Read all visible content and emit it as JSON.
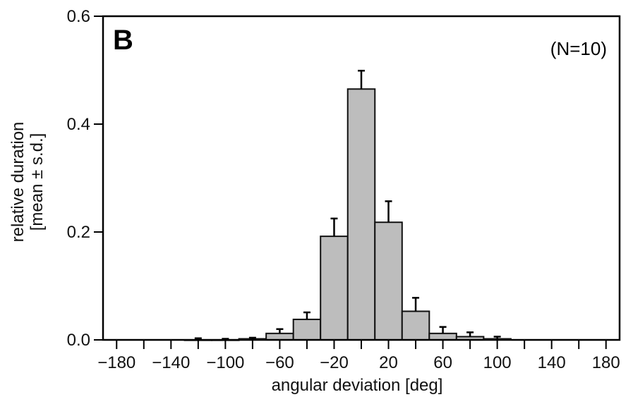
{
  "chart_data": {
    "type": "bar",
    "panel_label": "B",
    "annotation": "(N=10)",
    "xlabel": "angular deviation [deg]",
    "ylabel_line1": "relative duration",
    "ylabel_line2": "[mean ± s.d.]",
    "xlim": [
      -190,
      190
    ],
    "ylim": [
      0,
      0.6
    ],
    "bin_width": 20,
    "x_ticks": [
      -180,
      -160,
      -140,
      -120,
      -100,
      -80,
      -60,
      -40,
      -20,
      0,
      20,
      40,
      60,
      80,
      100,
      120,
      140,
      160,
      180
    ],
    "x_tick_labels": [
      {
        "value": -180,
        "label": "−180"
      },
      {
        "value": -140,
        "label": "−140"
      },
      {
        "value": -100,
        "label": "−100"
      },
      {
        "value": -60,
        "label": "−60"
      },
      {
        "value": -20,
        "label": "−20"
      },
      {
        "value": 20,
        "label": "20"
      },
      {
        "value": 60,
        "label": "60"
      },
      {
        "value": 100,
        "label": "100"
      },
      {
        "value": 140,
        "label": "140"
      },
      {
        "value": 180,
        "label": "180"
      }
    ],
    "y_ticks": [
      0,
      0.2,
      0.4,
      0.6
    ],
    "y_tick_labels": [
      {
        "value": 0,
        "label": "0.0"
      },
      {
        "value": 0.2,
        "label": "0.2"
      },
      {
        "value": 0.4,
        "label": "0.4"
      },
      {
        "value": 0.6,
        "label": "0.6"
      }
    ],
    "bars": [
      {
        "x": -120,
        "value": 0.0,
        "sd": 0.003
      },
      {
        "x": -100,
        "value": 0.0,
        "sd": 0.002
      },
      {
        "x": -80,
        "value": 0.002,
        "sd": 0.002
      },
      {
        "x": -60,
        "value": 0.012,
        "sd": 0.008
      },
      {
        "x": -40,
        "value": 0.038,
        "sd": 0.013
      },
      {
        "x": -20,
        "value": 0.192,
        "sd": 0.033
      },
      {
        "x": 0,
        "value": 0.465,
        "sd": 0.034
      },
      {
        "x": 20,
        "value": 0.218,
        "sd": 0.039
      },
      {
        "x": 40,
        "value": 0.053,
        "sd": 0.025
      },
      {
        "x": 60,
        "value": 0.012,
        "sd": 0.012
      },
      {
        "x": 80,
        "value": 0.006,
        "sd": 0.008
      },
      {
        "x": 100,
        "value": 0.002,
        "sd": 0.004
      }
    ],
    "colors": {
      "bar_fill": "#bdbdbd",
      "bar_stroke": "#111111",
      "axis": "#000000"
    }
  }
}
